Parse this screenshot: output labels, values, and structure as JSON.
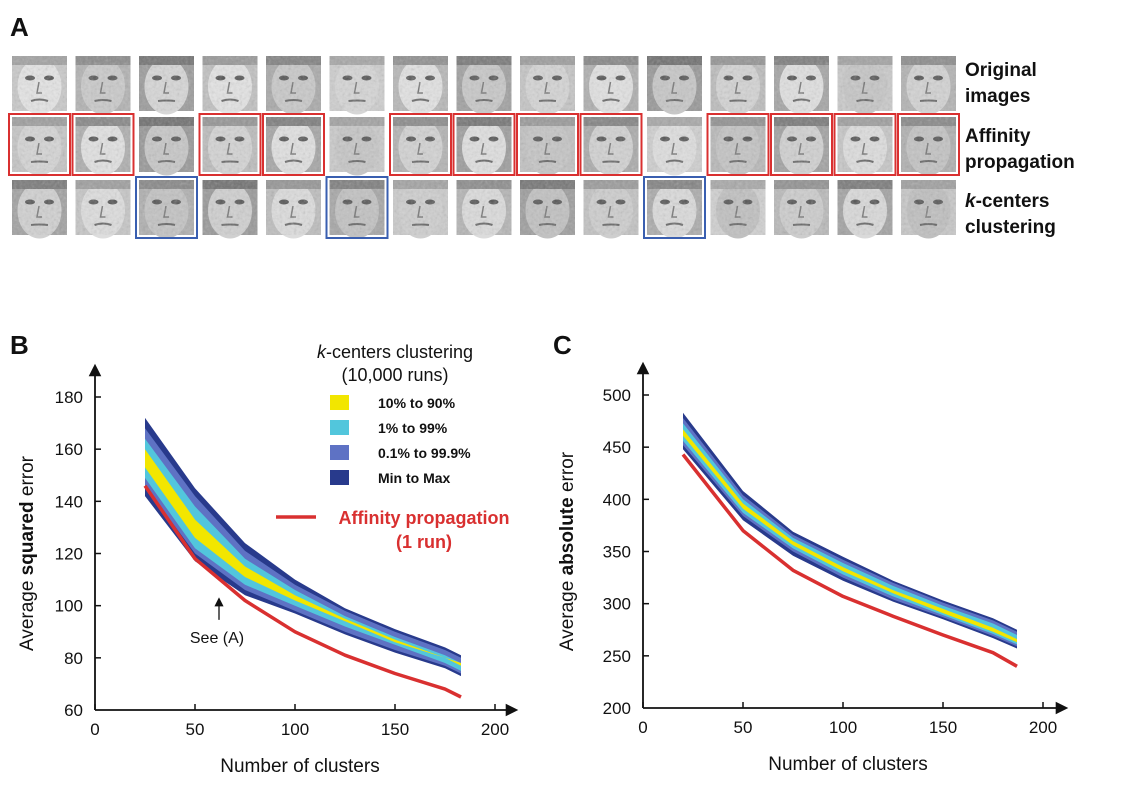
{
  "panel_a": {
    "letter": "A",
    "row_labels": [
      {
        "lines": [
          "Original",
          "images"
        ],
        "italic_first": false
      },
      {
        "lines": [
          "Affinity",
          "propagation"
        ],
        "italic_first": false
      },
      {
        "lines": [
          "k-centers",
          "clustering"
        ],
        "italic_first": true
      }
    ],
    "affinity_highlighted": [
      true,
      true,
      false,
      true,
      true,
      false,
      true,
      true,
      true,
      true,
      false,
      true,
      true,
      true,
      true
    ],
    "kcenters_highlighted": [
      false,
      false,
      true,
      false,
      false,
      true,
      false,
      false,
      false,
      false,
      true,
      false,
      false,
      false,
      false
    ],
    "highlight_colors": {
      "affinity": "#d93030",
      "kcenters": "#3a5fb0"
    }
  },
  "chart_data": [
    {
      "panel": "B",
      "type": "area",
      "ylabel": {
        "prefix": "Average ",
        "bold": "squared",
        "suffix": " error"
      },
      "xlabel": "Number of clusters",
      "xlim": [
        0,
        200
      ],
      "ylim": [
        60,
        180
      ],
      "xticks": [
        "0",
        "50",
        "100",
        "150",
        "200"
      ],
      "yticks": [
        "60",
        "80",
        "100",
        "120",
        "140",
        "160",
        "180"
      ],
      "x": [
        25,
        50,
        75,
        100,
        125,
        150,
        175,
        183
      ],
      "bands": [
        {
          "name": "Min to Max",
          "color": "#283a8c",
          "lower": [
            142,
            117,
            104,
            97,
            89,
            82,
            76,
            73
          ],
          "upper": [
            172,
            145,
            124,
            110,
            99,
            91,
            84,
            81
          ]
        },
        {
          "name": "0.1% to 99.9%",
          "color": "#5e72c4",
          "lower": [
            146,
            120,
            106,
            98,
            90,
            83,
            77,
            74
          ],
          "upper": [
            168,
            142,
            121,
            108,
            98,
            90,
            83,
            80
          ]
        },
        {
          "name": "1% to 99%",
          "color": "#52c6dc",
          "lower": [
            149,
            122,
            108,
            100,
            92,
            85,
            78,
            75
          ],
          "upper": [
            164,
            138,
            118,
            106,
            96,
            88,
            81,
            78
          ]
        },
        {
          "name": "10% to 90%",
          "color": "#f2e600",
          "lower": [
            153,
            126,
            111,
            102,
            94,
            86,
            80,
            77
          ],
          "upper": [
            160,
            133,
            115,
            104,
            95,
            87,
            80,
            78
          ]
        }
      ],
      "affinity": {
        "name": "Affinity propagation",
        "color": "#d93030",
        "x": [
          25,
          50,
          75,
          100,
          125,
          150,
          175,
          183
        ],
        "y": [
          146,
          118,
          102,
          90,
          81,
          74,
          68,
          65
        ]
      },
      "legend": {
        "title_italic": "k",
        "title_rest": "-centers clustering",
        "subtitle": "(10,000 runs)",
        "entries": [
          "10% to 90%",
          "1% to 99%",
          "0.1% to 99.9%",
          "Min to Max"
        ],
        "affinity_lines": [
          "Affinity propagation",
          "(1 run)"
        ]
      },
      "annotation": {
        "text": "See (A)",
        "x": 62,
        "y": 103
      }
    },
    {
      "panel": "C",
      "type": "area",
      "ylabel": {
        "prefix": "Average ",
        "bold": "absolute",
        "suffix": " error"
      },
      "xlabel": "Number of clusters",
      "xlim": [
        0,
        200
      ],
      "ylim": [
        200,
        500
      ],
      "xticks": [
        "0",
        "50",
        "100",
        "150",
        "200"
      ],
      "yticks": [
        "200",
        "250",
        "300",
        "350",
        "400",
        "450",
        "500"
      ],
      "x": [
        20,
        50,
        75,
        100,
        125,
        150,
        175,
        187
      ],
      "bands": [
        {
          "name": "Min to Max",
          "color": "#283a8c",
          "lower": [
            448,
            380,
            346,
            322,
            302,
            285,
            267,
            257
          ],
          "upper": [
            483,
            408,
            369,
            345,
            322,
            303,
            286,
            275
          ]
        },
        {
          "name": "0.1% to 99.9%",
          "color": "#5e72c4",
          "lower": [
            452,
            384,
            350,
            325,
            304,
            287,
            269,
            259
          ],
          "upper": [
            478,
            404,
            366,
            342,
            320,
            301,
            284,
            273
          ]
        },
        {
          "name": "1% to 99%",
          "color": "#52c6dc",
          "lower": [
            456,
            387,
            353,
            328,
            307,
            289,
            271,
            261
          ],
          "upper": [
            473,
            400,
            363,
            339,
            317,
            298,
            281,
            270
          ]
        },
        {
          "name": "10% to 90%",
          "color": "#f2e600",
          "lower": [
            461,
            391,
            356,
            331,
            310,
            291,
            273,
            263
          ],
          "upper": [
            467,
            396,
            360,
            335,
            313,
            295,
            277,
            266
          ]
        }
      ],
      "affinity": {
        "name": "Affinity propagation",
        "color": "#d93030",
        "x": [
          20,
          50,
          75,
          100,
          125,
          150,
          175,
          187
        ],
        "y": [
          443,
          370,
          332,
          307,
          288,
          270,
          253,
          240
        ]
      }
    }
  ]
}
